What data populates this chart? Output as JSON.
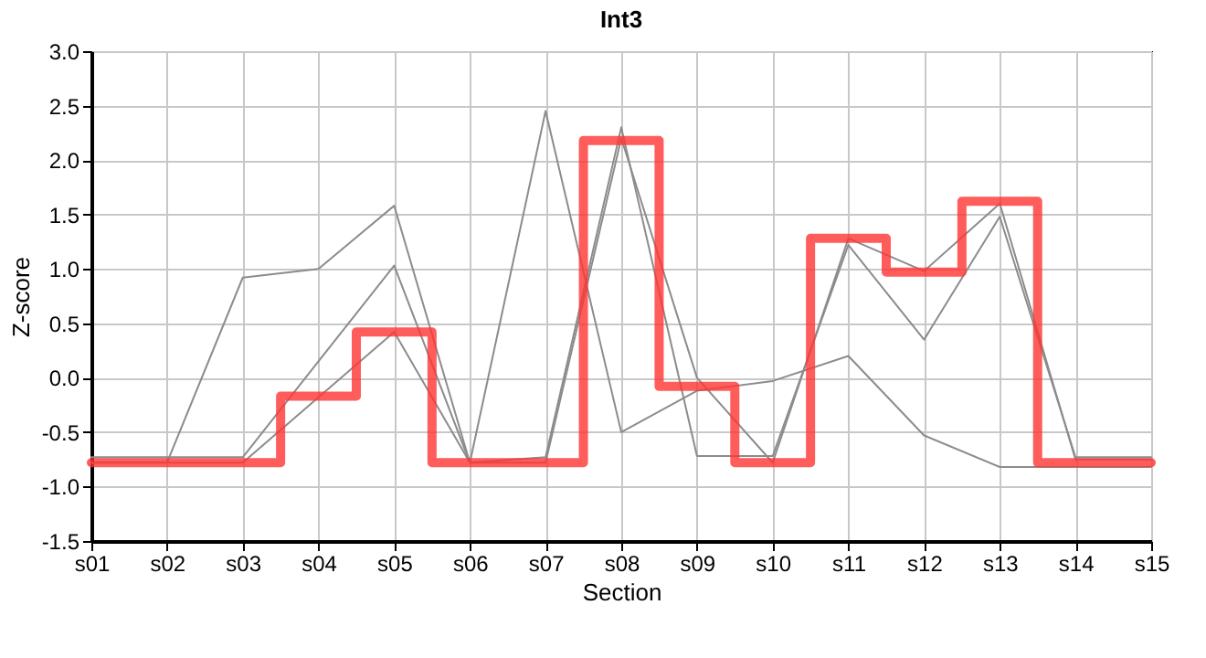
{
  "chart_data": {
    "type": "line",
    "title": "Int3",
    "xlabel": "Section",
    "ylabel": "Z-score",
    "categories": [
      "s01",
      "s02",
      "s03",
      "s04",
      "s05",
      "s06",
      "s07",
      "s08",
      "s09",
      "s10",
      "s11",
      "s12",
      "s13",
      "s14",
      "s15"
    ],
    "series": [
      {
        "color": "#8c8c8c",
        "values": [
          -0.78,
          -0.78,
          0.92,
          1.0,
          1.58,
          -0.78,
          2.45,
          -0.5,
          -0.12,
          -0.03,
          0.2,
          -0.53,
          -0.82,
          -0.82,
          -0.82
        ]
      },
      {
        "color": "#8c8c8c",
        "values": [
          -0.73,
          -0.73,
          -0.73,
          0.15,
          1.03,
          -0.78,
          -0.73,
          2.3,
          -0.72,
          -0.72,
          1.22,
          0.35,
          1.48,
          -0.73,
          -0.73
        ]
      },
      {
        "color": "#8c8c8c",
        "values": [
          -0.78,
          -0.78,
          -0.78,
          -0.18,
          0.42,
          -0.78,
          -0.78,
          2.2,
          0.0,
          -0.78,
          1.28,
          0.98,
          1.6,
          -0.75,
          -0.75
        ]
      },
      {
        "type": "step",
        "color": "#ff3333",
        "values": [
          -0.78,
          -0.78,
          -0.78,
          -0.17,
          0.42,
          -0.78,
          -0.78,
          2.18,
          -0.08,
          -0.78,
          1.28,
          0.97,
          1.62,
          -0.78,
          -0.78
        ]
      }
    ],
    "ylim": [
      -1.5,
      3.0
    ],
    "yticks": [
      {
        "value": -1.5,
        "label": "-1.5"
      },
      {
        "value": -1,
        "label": "-1.0"
      },
      {
        "value": -0.5,
        "label": "-0.5"
      },
      {
        "value": 0,
        "label": "0.0"
      },
      {
        "value": 0.5,
        "label": "0.5"
      },
      {
        "value": 1,
        "label": "1.0"
      },
      {
        "value": 1.5,
        "label": "1.5"
      },
      {
        "value": 2,
        "label": "2.0"
      },
      {
        "value": 2.5,
        "label": "2.5"
      },
      {
        "value": 3,
        "label": "3.0"
      }
    ],
    "grid": true,
    "marker": "none",
    "line_style": "solid"
  }
}
